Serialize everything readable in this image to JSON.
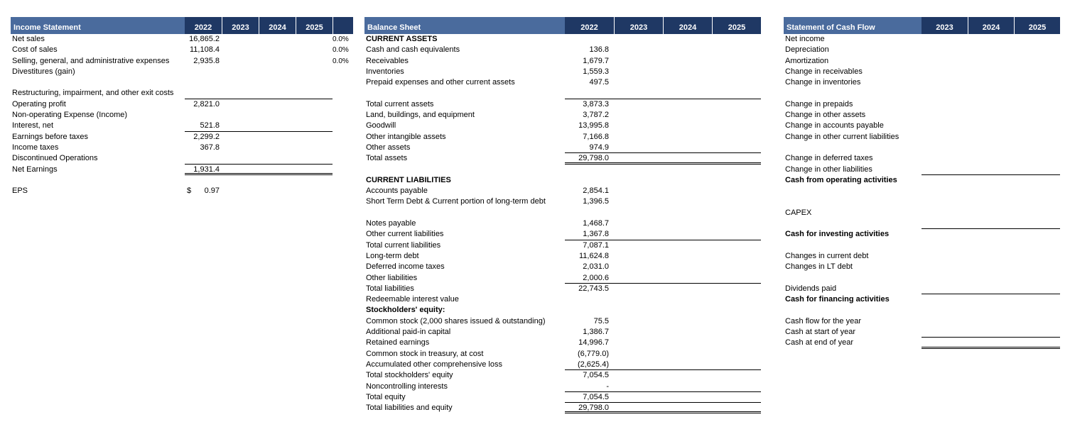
{
  "colors": {
    "title_bg": "#4a6b9d",
    "year_bg": "#1f3864",
    "header_text": "#ffffff",
    "body_text": "#000000",
    "line": "#000000"
  },
  "tables": [
    {
      "name": "income-statement",
      "title": "Income Statement",
      "years": [
        "2022",
        "2023",
        "2024",
        "2025"
      ],
      "rows": [
        {
          "label": "Net sales",
          "values": [
            "16,865.2"
          ],
          "pct": "0.0%"
        },
        {
          "label": "Cost of sales",
          "values": [
            "11,108.4"
          ],
          "pct": "0.0%"
        },
        {
          "label": "Selling, general, and administrative expenses",
          "values": [
            "2,935.8"
          ],
          "pct": "0.0%"
        },
        {
          "label": "Divestitures (gain)"
        },
        {
          "blank": true
        },
        {
          "label": "Restructuring, impairment, and other exit costs",
          "line": "single"
        },
        {
          "label": "Operating profit",
          "values": [
            "2,821.0"
          ]
        },
        {
          "label": "Non-operating Expense (Income)"
        },
        {
          "label": "Interest, net",
          "values": [
            "521.8"
          ],
          "line": "single"
        },
        {
          "label": "Earnings before taxes",
          "values": [
            "2,299.2"
          ]
        },
        {
          "label": "Income taxes",
          "values": [
            "367.8"
          ]
        },
        {
          "label": "Discontinued Operations",
          "line": "single"
        },
        {
          "label": "Net Earnings",
          "values": [
            "1,931.4"
          ],
          "line": "double"
        },
        {
          "blank": true
        },
        {
          "label": "EPS",
          "currency": "$",
          "values": [
            "0.97"
          ]
        }
      ]
    },
    {
      "name": "balance-sheet",
      "title": "Balance Sheet",
      "years": [
        "2022",
        "2023",
        "2024",
        "2025"
      ],
      "rows": [
        {
          "label": "CURRENT ASSETS",
          "bold": true
        },
        {
          "label": "Cash and cash equivalents",
          "values": [
            "136.8"
          ]
        },
        {
          "label": "Receivables",
          "values": [
            "1,679.7"
          ]
        },
        {
          "label": "Inventories",
          "values": [
            "1,559.3"
          ]
        },
        {
          "label": "Prepaid expenses and other current assets",
          "values": [
            "497.5"
          ]
        },
        {
          "blank": true,
          "line": "single"
        },
        {
          "label": "Total current assets",
          "values": [
            "3,873.3"
          ]
        },
        {
          "label": "Land, buildings, and equipment",
          "values": [
            "3,787.2"
          ]
        },
        {
          "label": "Goodwill",
          "values": [
            "13,995.8"
          ]
        },
        {
          "label": "Other intangible assets",
          "values": [
            "7,166.8"
          ]
        },
        {
          "label": "Other assets",
          "values": [
            "974.9"
          ],
          "line": "single"
        },
        {
          "label": "Total assets",
          "values": [
            "29,798.0"
          ],
          "line": "double"
        },
        {
          "blank": true
        },
        {
          "label": "CURRENT LIABILITIES",
          "bold": true
        },
        {
          "label": "Accounts payable",
          "values": [
            "2,854.1"
          ]
        },
        {
          "label": "Short Term Debt & Current portion of long-term debt",
          "values": [
            "1,396.5"
          ]
        },
        {
          "blank": true
        },
        {
          "label": "Notes payable",
          "values": [
            "1,468.7"
          ]
        },
        {
          "label": "Other current liabilities",
          "values": [
            "1,367.8"
          ],
          "line": "single"
        },
        {
          "label": "Total current liabilities",
          "values": [
            "7,087.1"
          ]
        },
        {
          "label": "Long-term debt",
          "values": [
            "11,624.8"
          ]
        },
        {
          "label": "Deferred income taxes",
          "values": [
            "2,031.0"
          ]
        },
        {
          "label": "Other liabilities",
          "values": [
            "2,000.6"
          ],
          "line": "single"
        },
        {
          "label": "Total liabilities",
          "values": [
            "22,743.5"
          ]
        },
        {
          "label": "Redeemable interest value"
        },
        {
          "label": "Stockholders' equity:",
          "bold": true
        },
        {
          "label": "Common stock (2,000 shares issued & outstanding)",
          "values": [
            "75.5"
          ]
        },
        {
          "label": "Additional paid-in capital",
          "values": [
            "1,386.7"
          ]
        },
        {
          "label": "Retained earnings",
          "values": [
            "14,996.7"
          ]
        },
        {
          "label": "Common stock in treasury, at cost",
          "values": [
            "(6,779.0)"
          ]
        },
        {
          "label": "Accumulated other comprehensive loss",
          "values": [
            "(2,625.4)"
          ],
          "line": "single"
        },
        {
          "label": "Total stockholders' equity",
          "values": [
            "7,054.5"
          ]
        },
        {
          "label": "Noncontrolling interests",
          "values": [
            "-"
          ],
          "line": "single"
        },
        {
          "label": "Total equity",
          "values": [
            "7,054.5"
          ],
          "line": "single"
        },
        {
          "label": "Total liabilities and equity",
          "values": [
            "29,798.0"
          ],
          "line": "double"
        }
      ]
    },
    {
      "name": "cash-flow",
      "title": "Statement of Cash Flow",
      "years": [
        "2023",
        "2024",
        "2025"
      ],
      "rows": [
        {
          "label": "Net income"
        },
        {
          "label": "Depreciation"
        },
        {
          "label": "Amortization"
        },
        {
          "label": "Change in receivables"
        },
        {
          "label": "Change in inventories"
        },
        {
          "blank": true
        },
        {
          "label": "Change in prepaids"
        },
        {
          "label": "Change in other assets"
        },
        {
          "label": "Change in accounts payable"
        },
        {
          "label": "Change in other current liabilities"
        },
        {
          "blank": true
        },
        {
          "label": "Change in deferred taxes"
        },
        {
          "label": "Change in other liabilities",
          "line": "single"
        },
        {
          "label": "Cash from operating activities",
          "bold": true
        },
        {
          "blank": true
        },
        {
          "blank": true
        },
        {
          "label": "CAPEX"
        },
        {
          "blank": true,
          "line": "single"
        },
        {
          "label": "Cash for investing activities",
          "bold": true
        },
        {
          "blank": true
        },
        {
          "label": "Changes in current debt"
        },
        {
          "label": "Changes in LT debt"
        },
        {
          "blank": true
        },
        {
          "label": "Dividends paid",
          "line": "single"
        },
        {
          "label": "Cash for financing activities",
          "bold": true
        },
        {
          "blank": true
        },
        {
          "label": "Cash flow for the year"
        },
        {
          "label": "Cash at start of year",
          "line": "single"
        },
        {
          "label": "Cash at end of year",
          "line": "double"
        }
      ]
    }
  ]
}
